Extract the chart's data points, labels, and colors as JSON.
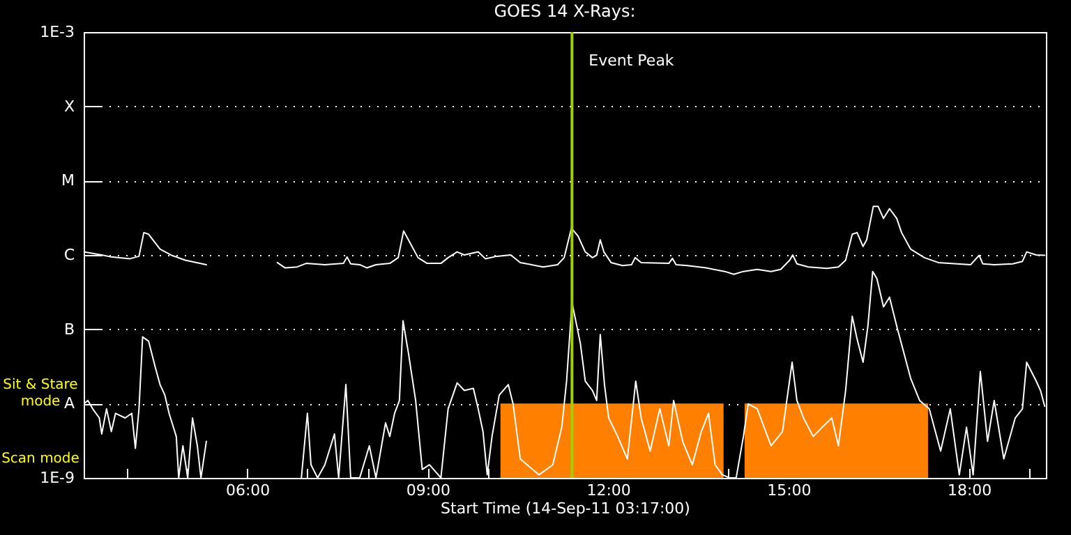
{
  "chart_data": {
    "type": "line",
    "title": "GOES 14 X-Rays:",
    "xlabel": "Start Time (14-Sep-11 03:17:00)",
    "annotations": [
      "Sit & Stare mode",
      "Scan mode"
    ],
    "log": "y",
    "grid": "y",
    "xlim": [
      3.28,
      19.28
    ],
    "xticks": [
      {
        "value": 4,
        "label": null
      },
      {
        "value": 5,
        "label": null
      },
      {
        "value": 6,
        "label": "06:00"
      },
      {
        "value": 7,
        "label": null
      },
      {
        "value": 8,
        "label": null
      },
      {
        "value": 9,
        "label": "09:00"
      },
      {
        "value": 10,
        "label": null
      },
      {
        "value": 11,
        "label": null
      },
      {
        "value": 12,
        "label": "12:00"
      },
      {
        "value": 13,
        "label": null
      },
      {
        "value": 14,
        "label": null
      },
      {
        "value": 15,
        "label": "15:00"
      },
      {
        "value": 16,
        "label": null
      },
      {
        "value": 17,
        "label": null
      },
      {
        "value": 18,
        "label": "18:00"
      },
      {
        "value": 19,
        "label": null
      }
    ],
    "ylim": [
      1e-09,
      0.001
    ],
    "yticks": [
      {
        "value": 1e-09,
        "label": "1E-9"
      },
      {
        "value": 1e-08,
        "label": "A"
      },
      {
        "value": 1e-07,
        "label": "B"
      },
      {
        "value": 1e-06,
        "label": "C"
      },
      {
        "value": 1e-05,
        "label": "M"
      },
      {
        "value": 0.0001,
        "label": "X"
      },
      {
        "value": 0.001,
        "label": "1E-3"
      }
    ],
    "ref_lines": [
      {
        "axis": "x",
        "value": 11.4,
        "label": "Event Peak",
        "color": "#a0d000"
      }
    ],
    "series": [
      {
        "type": "area",
        "color": "#ff8000",
        "x": [
          10.21,
          13.92
        ],
        "values": [
          1e-08,
          1e-08
        ]
      },
      {
        "type": "area",
        "color": "#ff8000",
        "x": [
          14.27,
          17.32
        ],
        "values": [
          1e-08,
          1e-08
        ]
      },
      {
        "color": "#ffffff",
        "x": [
          3.28,
          3.58,
          3.74,
          4.05,
          4.2,
          4.28,
          4.36,
          4.55,
          4.74,
          4.97,
          5.32,
          5.9,
          6.5,
          6.63,
          6.83,
          6.98,
          7.29,
          7.6,
          7.66,
          7.72,
          7.87,
          7.99,
          8.14,
          8.37,
          8.51,
          8.6,
          8.68,
          8.84,
          8.99,
          9.22,
          9.34,
          9.49,
          9.61,
          9.84,
          9.96,
          10.15,
          10.38,
          10.54,
          10.92,
          11.16,
          11.27,
          11.39,
          11.5,
          11.62,
          11.74,
          11.81,
          11.87,
          11.93,
          12.05,
          12.24,
          12.39,
          12.45,
          12.55,
          13.01,
          13.07,
          13.13,
          13.32,
          13.63,
          13.94,
          14.09,
          14.25,
          14.48,
          14.71,
          14.87,
          15.02,
          15.07,
          15.14,
          15.33,
          15.64,
          15.83,
          15.95,
          16.06,
          16.14,
          16.24,
          16.3,
          16.41,
          16.49,
          16.58,
          16.68,
          16.8,
          16.88,
          17.03,
          17.26,
          17.49,
          17.8,
          18.03,
          18.17,
          18.23,
          18.42,
          18.73,
          18.89,
          18.96,
          19.12,
          19.26
        ],
        "values": [
          1.1e-06,
          1e-06,
          9.4e-07,
          8.9e-07,
          9.6e-07,
          2e-06,
          1.9e-06,
          1.2e-06,
          9.9e-07,
          8.5e-07,
          7.4e-07,
          null,
          7.9e-07,
          6.7e-07,
          6.9e-07,
          7.7e-07,
          7.4e-07,
          7.7e-07,
          9.4e-07,
          7.6e-07,
          7.4e-07,
          6.7e-07,
          7.4e-07,
          7.7e-07,
          9.2e-07,
          2.1e-06,
          1.6e-06,
          9.2e-07,
          7.7e-07,
          7.7e-07,
          9.2e-07,
          1.1e-06,
          1e-06,
          1.1e-06,
          8.9e-07,
          9.6e-07,
          1e-06,
          7.9e-07,
          6.9e-07,
          7.4e-07,
          9.2e-07,
          2.3e-06,
          1.8e-06,
          1.1e-06,
          9.2e-07,
          9.9e-07,
          1.6e-06,
          1.1e-06,
          7.9e-07,
          7.2e-07,
          7.4e-07,
          9.2e-07,
          7.9e-07,
          7.7e-07,
          9e-07,
          7.4e-07,
          7.2e-07,
          6.7e-07,
          6e-07,
          5.5e-07,
          6e-07,
          6.4e-07,
          6e-07,
          6.4e-07,
          8.5e-07,
          1e-06,
          7.6e-07,
          6.9e-07,
          6.6e-07,
          6.9e-07,
          8.5e-07,
          1.9e-06,
          2e-06,
          1.3e-06,
          1.6e-06,
          4.5e-06,
          4.5e-06,
          3.1e-06,
          4.2e-06,
          3.1e-06,
          2e-06,
          1.2e-06,
          9.2e-07,
          7.9e-07,
          7.6e-07,
          7.4e-07,
          9.9e-07,
          7.6e-07,
          7.4e-07,
          7.6e-07,
          8.2e-07,
          1.1e-06,
          1e-06,
          9.9e-07
        ]
      },
      {
        "color": "#ffffff",
        "x": [
          3.28,
          3.35,
          3.43,
          3.54,
          3.58,
          3.66,
          3.74,
          3.81,
          3.97,
          4.08,
          4.14,
          4.2,
          4.26,
          4.36,
          4.47,
          4.55,
          4.63,
          4.7,
          4.82,
          4.86,
          4.93,
          5.01,
          5.09,
          5.17,
          5.23,
          5.32,
          5.9,
          6.9,
          7.0,
          7.06,
          7.17,
          7.29,
          7.45,
          7.52,
          7.64,
          7.72,
          7.87,
          8.03,
          8.14,
          8.3,
          8.37,
          8.45,
          8.53,
          8.59,
          8.68,
          8.8,
          8.91,
          9.03,
          9.22,
          9.34,
          9.49,
          9.61,
          9.76,
          9.84,
          9.92,
          9.99,
          10.07,
          10.19,
          10.34,
          10.42,
          10.54,
          10.85,
          11.08,
          11.23,
          11.31,
          11.4,
          11.54,
          11.62,
          11.74,
          11.81,
          11.87,
          11.94,
          12.01,
          12.16,
          12.32,
          12.46,
          12.55,
          12.7,
          12.86,
          13.01,
          13.09,
          13.24,
          13.4,
          13.55,
          13.67,
          13.78,
          13.9,
          14.02,
          14.13,
          14.25,
          14.33,
          14.48,
          14.71,
          14.9,
          15.06,
          15.14,
          15.25,
          15.41,
          15.56,
          15.72,
          15.83,
          15.95,
          16.06,
          16.14,
          16.24,
          16.32,
          16.4,
          16.47,
          16.58,
          16.68,
          16.8,
          17.03,
          17.18,
          17.34,
          17.53,
          17.69,
          17.84,
          17.96,
          18.07,
          18.19,
          18.31,
          18.42,
          18.58,
          18.77,
          18.89,
          18.96,
          19.12,
          19.19,
          19.26
        ],
        "values": [
          9.9e-09,
          1.1e-08,
          8.5e-09,
          6.4e-09,
          3.9e-09,
          8.5e-09,
          4.2e-09,
          7.4e-09,
          6.4e-09,
          7.4e-09,
          2.5e-09,
          8.5e-09,
          7.9e-08,
          6.9e-08,
          3.1e-08,
          1.8e-08,
          1.3e-08,
          7.4e-09,
          3.6e-09,
          1e-09,
          2.7e-09,
          1e-09,
          6.4e-09,
          2.7e-09,
          1e-09,
          3.1e-09,
          null,
          1e-09,
          7.4e-09,
          1.5e-09,
          1e-09,
          1.5e-09,
          3.9e-09,
          1e-09,
          1.8e-08,
          1e-09,
          1e-09,
          2.7e-09,
          1e-09,
          5.5e-09,
          3.6e-09,
          7.4e-09,
          1.1e-08,
          1.3e-07,
          4.8e-08,
          1.1e-08,
          1.3e-09,
          1.5e-09,
          1e-09,
          8.5e-09,
          1.9e-08,
          1.5e-08,
          1.6e-08,
          8.5e-09,
          4.2e-09,
          1.1e-09,
          3.6e-09,
          1.3e-08,
          1.8e-08,
          9.9e-09,
          1.8e-09,
          1.1e-09,
          1.5e-09,
          4.8e-09,
          2e-08,
          2.3e-07,
          6.4e-08,
          2e-08,
          1.5e-08,
          1.1e-08,
          8.5e-08,
          1.8e-08,
          6.4e-09,
          3.6e-09,
          1.8e-09,
          2e-08,
          6.4e-09,
          2.3e-09,
          8.5e-09,
          2.7e-09,
          1.1e-08,
          3.1e-09,
          1.5e-09,
          4.2e-09,
          7.4e-09,
          1.5e-09,
          1.1e-09,
          1e-09,
          1e-09,
          3.6e-09,
          9.9e-09,
          8.5e-09,
          2.7e-09,
          4.2e-09,
          3.6e-08,
          1.1e-08,
          6.4e-09,
          3.6e-09,
          4.8e-09,
          6.4e-09,
          2.7e-09,
          1.5e-08,
          1.5e-07,
          7.4e-08,
          3.6e-08,
          1.1e-07,
          6e-07,
          4.8e-07,
          2e-07,
          2.7e-07,
          1.1e-07,
          2.2e-08,
          1.1e-08,
          8.5e-09,
          2.3e-09,
          8.5e-09,
          1.1e-09,
          4.8e-09,
          1.1e-09,
          2.7e-08,
          3.1e-09,
          1.1e-08,
          1.8e-09,
          6.4e-09,
          8.5e-09,
          3.6e-08,
          2e-08,
          1.5e-08,
          9.2e-09
        ]
      }
    ]
  }
}
